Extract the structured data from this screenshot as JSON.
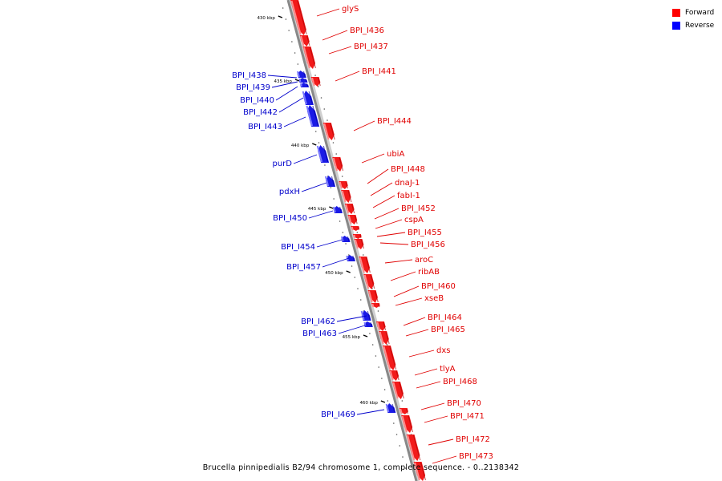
{
  "legend": {
    "items": [
      {
        "label": "Forward",
        "color": "#ff0000"
      },
      {
        "label": "Reverse",
        "color": "#0000ff"
      }
    ]
  },
  "caption": "Brucella pinnipedialis B2/94 chromosome 1, complete sequence. - 0..2138342",
  "colors": {
    "forward": "#f21a1a",
    "reverse": "#1a1ae6",
    "backbone": "#888888",
    "forward_label": "#e00000",
    "reverse_label": "#0000cc"
  },
  "ruler": [
    "430 kbp",
    "435 kbp",
    "440 kbp",
    "445 kbp",
    "450 kbp",
    "455 kbp",
    "460 kbp"
  ],
  "forward_genes": [
    "glyS",
    "BPI_I436",
    "BPI_I437",
    "BPI_I441",
    "BPI_I444",
    "ubiA",
    "BPI_I448",
    "dnaJ-1",
    "fabI-1",
    "BPI_I452",
    "cspA",
    "BPI_I455",
    "BPI_I456",
    "aroC",
    "ribAB",
    "BPI_I460",
    "xseB",
    "BPI_I464",
    "BPI_I465",
    "dxs",
    "tlyA",
    "BPI_I468",
    "BPI_I470",
    "BPI_I471",
    "BPI_I472",
    "BPI_I473"
  ],
  "reverse_genes": [
    "BPI_I438",
    "BPI_I439",
    "BPI_I440",
    "BPI_I442",
    "BPI_I443",
    "purD",
    "pdxH",
    "BPI_I450",
    "BPI_I454",
    "BPI_I457",
    "BPI_I462",
    "BPI_I463",
    "BPI_I469"
  ]
}
